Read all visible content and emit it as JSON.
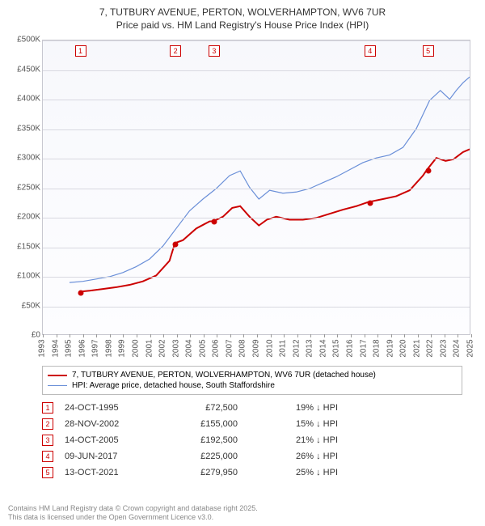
{
  "title": "7, TUTBURY AVENUE, PERTON, WOLVERHAMPTON, WV6 7UR",
  "subtitle": "Price paid vs. HM Land Registry's House Price Index (HPI)",
  "chart": {
    "type": "line",
    "background_gradient": [
      "#f7f8fc",
      "#fdfdff"
    ],
    "grid_color": "#d8d8e0",
    "border_color": "#c8c8d0",
    "ylim": [
      0,
      500000
    ],
    "ytick_step": 50000,
    "yticks": [
      "£0",
      "£50K",
      "£100K",
      "£150K",
      "£200K",
      "£250K",
      "£300K",
      "£350K",
      "£400K",
      "£450K",
      "£500K"
    ],
    "xlim": [
      1993,
      2025
    ],
    "xticks": [
      1993,
      1994,
      1995,
      1996,
      1997,
      1998,
      1999,
      2000,
      2001,
      2002,
      2003,
      2004,
      2005,
      2006,
      2007,
      2008,
      2009,
      2010,
      2011,
      2012,
      2013,
      2014,
      2015,
      2016,
      2017,
      2018,
      2019,
      2020,
      2021,
      2022,
      2023,
      2024,
      2025
    ],
    "series": [
      {
        "name": "property",
        "label": "7, TUTBURY AVENUE, PERTON, WOLVERHAMPTON, WV6 7UR (detached house)",
        "color": "#cc0000",
        "width": 2,
        "data": [
          [
            1995.8,
            72500
          ],
          [
            1996.5,
            74000
          ],
          [
            1997.5,
            77000
          ],
          [
            1998.5,
            80000
          ],
          [
            1999.5,
            84000
          ],
          [
            2000.5,
            90000
          ],
          [
            2001.5,
            100000
          ],
          [
            2002.5,
            125000
          ],
          [
            2002.9,
            155000
          ],
          [
            2003.5,
            160000
          ],
          [
            2004.5,
            180000
          ],
          [
            2005.5,
            192000
          ],
          [
            2005.8,
            192500
          ],
          [
            2006.5,
            200000
          ],
          [
            2007.2,
            215000
          ],
          [
            2007.8,
            218000
          ],
          [
            2008.5,
            200000
          ],
          [
            2009.2,
            185000
          ],
          [
            2009.8,
            195000
          ],
          [
            2010.5,
            200000
          ],
          [
            2011.5,
            195000
          ],
          [
            2012.5,
            195000
          ],
          [
            2013.5,
            198000
          ],
          [
            2014.5,
            205000
          ],
          [
            2015.5,
            212000
          ],
          [
            2016.5,
            218000
          ],
          [
            2017.4,
            225000
          ],
          [
            2018.5,
            230000
          ],
          [
            2019.5,
            235000
          ],
          [
            2020.5,
            245000
          ],
          [
            2021.5,
            270000
          ],
          [
            2021.8,
            279950
          ],
          [
            2022.5,
            300000
          ],
          [
            2023.2,
            295000
          ],
          [
            2023.8,
            298000
          ],
          [
            2024.5,
            310000
          ],
          [
            2025.0,
            315000
          ]
        ]
      },
      {
        "name": "hpi",
        "label": "HPI: Average price, detached house, South Staffordshire",
        "color": "#6a8fd8",
        "width": 1.2,
        "data": [
          [
            1995.0,
            88000
          ],
          [
            1996.0,
            90000
          ],
          [
            1997.0,
            94000
          ],
          [
            1998.0,
            98000
          ],
          [
            1999.0,
            105000
          ],
          [
            2000.0,
            115000
          ],
          [
            2001.0,
            128000
          ],
          [
            2002.0,
            150000
          ],
          [
            2003.0,
            180000
          ],
          [
            2004.0,
            210000
          ],
          [
            2005.0,
            230000
          ],
          [
            2006.0,
            248000
          ],
          [
            2007.0,
            270000
          ],
          [
            2007.8,
            278000
          ],
          [
            2008.5,
            250000
          ],
          [
            2009.2,
            230000
          ],
          [
            2010.0,
            245000
          ],
          [
            2011.0,
            240000
          ],
          [
            2012.0,
            242000
          ],
          [
            2013.0,
            248000
          ],
          [
            2014.0,
            258000
          ],
          [
            2015.0,
            268000
          ],
          [
            2016.0,
            280000
          ],
          [
            2017.0,
            292000
          ],
          [
            2018.0,
            300000
          ],
          [
            2019.0,
            305000
          ],
          [
            2020.0,
            318000
          ],
          [
            2021.0,
            350000
          ],
          [
            2022.0,
            398000
          ],
          [
            2022.8,
            415000
          ],
          [
            2023.5,
            400000
          ],
          [
            2024.0,
            415000
          ],
          [
            2024.5,
            428000
          ],
          [
            2025.0,
            438000
          ]
        ]
      }
    ],
    "markers": [
      {
        "n": "1",
        "year": 1995.81,
        "price": 72500
      },
      {
        "n": "2",
        "year": 2002.91,
        "price": 155000
      },
      {
        "n": "3",
        "year": 2005.79,
        "price": 192500
      },
      {
        "n": "4",
        "year": 2017.44,
        "price": 225000
      },
      {
        "n": "5",
        "year": 2021.78,
        "price": 279950
      }
    ]
  },
  "legend": {
    "items": [
      {
        "color": "#cc0000",
        "width": 2,
        "label": "7, TUTBURY AVENUE, PERTON, WOLVERHAMPTON, WV6 7UR (detached house)"
      },
      {
        "color": "#6a8fd8",
        "width": 1,
        "label": "HPI: Average price, detached house, South Staffordshire"
      }
    ]
  },
  "transactions": [
    {
      "n": "1",
      "date": "24-OCT-1995",
      "price": "£72,500",
      "pct": "19% ↓ HPI"
    },
    {
      "n": "2",
      "date": "28-NOV-2002",
      "price": "£155,000",
      "pct": "15% ↓ HPI"
    },
    {
      "n": "3",
      "date": "14-OCT-2005",
      "price": "£192,500",
      "pct": "21% ↓ HPI"
    },
    {
      "n": "4",
      "date": "09-JUN-2017",
      "price": "£225,000",
      "pct": "26% ↓ HPI"
    },
    {
      "n": "5",
      "date": "13-OCT-2021",
      "price": "£279,950",
      "pct": "25% ↓ HPI"
    }
  ],
  "footer1": "Contains HM Land Registry data © Crown copyright and database right 2025.",
  "footer2": "This data is licensed under the Open Government Licence v3.0."
}
